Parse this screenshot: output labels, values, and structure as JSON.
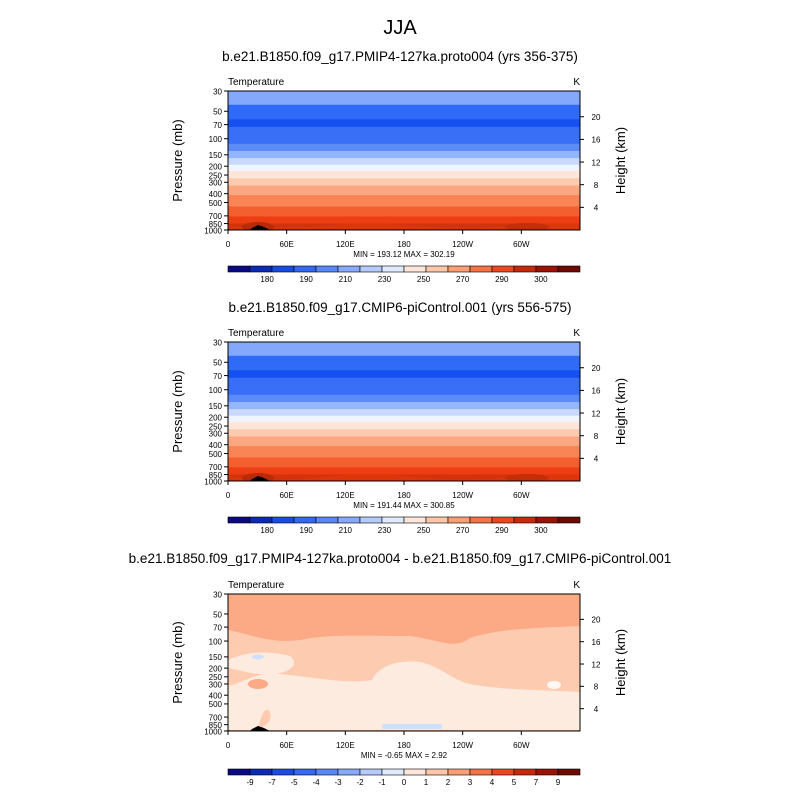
{
  "figure": {
    "suptitle": "JJA"
  },
  "chart_data": [
    {
      "type": "heatmap",
      "title": "b.e21.B1850.f09_g17.PMIP4-127ka.proto004 (yrs 356-375)",
      "variable": "Temperature",
      "units": "K",
      "ylabel": "Pressure (mb)",
      "ylabel_right": "Height (km)",
      "x_ticks": [
        "0",
        "60E",
        "120E",
        "180",
        "120W",
        "60W"
      ],
      "y_ticks": [
        "30",
        "50",
        "70",
        "100",
        "150",
        "200",
        "250",
        "300",
        "400",
        "500",
        "700",
        "850",
        "1000"
      ],
      "right_ticks": [
        "20",
        "16",
        "12",
        "8",
        "4"
      ],
      "minmax": "MIN = 193.12  MAX = 302.19",
      "colorbar_labels": [
        "180",
        "190",
        "210",
        "230",
        "250",
        "270",
        "290",
        "300"
      ],
      "colors": {
        "bands": [
          "#84a8fb",
          "#2f6bf6",
          "#1551f0",
          "#396ef7",
          "#5d8bf9",
          "#93b6fb",
          "#c8d9fd",
          "#f0f4fe",
          "#fde5d8",
          "#fccaae",
          "#fba882",
          "#f98456",
          "#f45f2f",
          "#ed3d12",
          "#d3330c"
        ],
        "colorbar": [
          "#0a0a82",
          "#0c2bb5",
          "#1a4ce3",
          "#3468f2",
          "#5a87f7",
          "#87a9fb",
          "#b5cbfd",
          "#e0eafe",
          "#fde6d9",
          "#fcc6a8",
          "#fa9e76",
          "#f67346",
          "#ec4820",
          "#c7290e",
          "#9b1305",
          "#6e0a04"
        ]
      }
    },
    {
      "type": "heatmap",
      "title": "b.e21.B1850.f09_g17.CMIP6-piControl.001 (yrs 556-575)",
      "variable": "Temperature",
      "units": "K",
      "ylabel": "Pressure (mb)",
      "ylabel_right": "Height (km)",
      "x_ticks": [
        "0",
        "60E",
        "120E",
        "180",
        "120W",
        "60W"
      ],
      "y_ticks": [
        "30",
        "50",
        "70",
        "100",
        "150",
        "200",
        "250",
        "300",
        "400",
        "500",
        "700",
        "850",
        "1000"
      ],
      "right_ticks": [
        "20",
        "16",
        "12",
        "8",
        "4"
      ],
      "minmax": "MIN = 191.44  MAX = 300.85",
      "colorbar_labels": [
        "180",
        "190",
        "210",
        "230",
        "250",
        "270",
        "290",
        "300"
      ],
      "colors": {
        "bands": [
          "#84a8fb",
          "#2f6bf6",
          "#1551f0",
          "#396ef7",
          "#5d8bf9",
          "#93b6fb",
          "#c8d9fd",
          "#f0f4fe",
          "#fde5d8",
          "#fccaae",
          "#fba882",
          "#f98456",
          "#f45f2f",
          "#ed3d12",
          "#d3330c"
        ],
        "colorbar": [
          "#0a0a82",
          "#0c2bb5",
          "#1a4ce3",
          "#3468f2",
          "#5a87f7",
          "#87a9fb",
          "#b5cbfd",
          "#e0eafe",
          "#fde6d9",
          "#fcc6a8",
          "#fa9e76",
          "#f67346",
          "#ec4820",
          "#c7290e",
          "#9b1305",
          "#6e0a04"
        ]
      }
    },
    {
      "type": "heatmap",
      "title": "b.e21.B1850.f09_g17.PMIP4-127ka.proto004 - b.e21.B1850.f09_g17.CMIP6-piControl.001",
      "variable": "Temperature",
      "units": "K",
      "ylabel": "Pressure (mb)",
      "ylabel_right": "Height (km)",
      "x_ticks": [
        "0",
        "60E",
        "120E",
        "180",
        "120W",
        "60W"
      ],
      "y_ticks": [
        "30",
        "50",
        "70",
        "100",
        "150",
        "200",
        "250",
        "300",
        "400",
        "500",
        "700",
        "850",
        "1000"
      ],
      "right_ticks": [
        "20",
        "16",
        "12",
        "8",
        "4"
      ],
      "minmax": "MIN =  -0.65  MAX =   2.92",
      "colorbar_labels": [
        "-9",
        "-7",
        "-5",
        "-4",
        "-3",
        "-2",
        "-1",
        "0",
        "1",
        "2",
        "3",
        "4",
        "5",
        "7",
        "9"
      ],
      "colors": {
        "diff_high": "#fca985",
        "diff_mid": "#fdcbb0",
        "diff_low": "#feebdf",
        "diff_neg": "#cfe0fd",
        "colorbar": [
          "#0a0a82",
          "#0c2bb5",
          "#1a4ce3",
          "#3468f2",
          "#5a87f7",
          "#87a9fb",
          "#b5cbfd",
          "#e0eafe",
          "#fde6d9",
          "#fcc6a8",
          "#fa9e76",
          "#f67346",
          "#ec4820",
          "#c7290e",
          "#9b1305",
          "#6e0a04"
        ]
      }
    }
  ]
}
